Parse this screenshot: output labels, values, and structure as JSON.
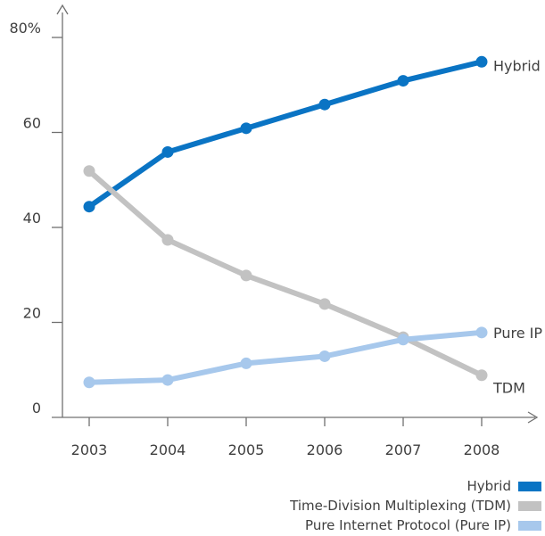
{
  "chart_data": {
    "type": "line",
    "x": [
      "2003",
      "2004",
      "2005",
      "2006",
      "2007",
      "2008"
    ],
    "yticks": [
      "80%",
      "60",
      "40",
      "20",
      "0"
    ],
    "ylim": [
      0,
      80
    ],
    "grid": false,
    "legend_position": "bottom-right",
    "series": [
      {
        "key": "hybrid",
        "name": "Hybrid",
        "end_label": "Hybrid",
        "color": "#0a74c4",
        "values": [
          44,
          55.5,
          60.5,
          65.5,
          70.5,
          74.5
        ]
      },
      {
        "key": "tdm",
        "name": "Time-Division Multiplexing (TDM)",
        "end_label": "TDM",
        "color": "#c2c2c2",
        "values": [
          51.5,
          37,
          29.5,
          23.5,
          16.5,
          8.5
        ]
      },
      {
        "key": "pureip",
        "name": "Pure Internet Protocol (Pure IP)",
        "end_label": "Pure IP",
        "color": "#a7c8ec",
        "values": [
          7,
          7.5,
          11,
          12.5,
          16,
          17.5
        ]
      }
    ]
  }
}
